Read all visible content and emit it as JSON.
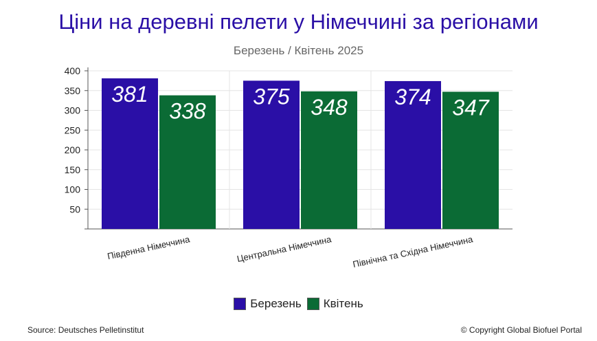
{
  "header": {
    "title": "Ціни на деревні пелети у Німеччині за регіонами",
    "subtitle": "Березень / Квітень 2025"
  },
  "footer": {
    "source": "Source: Deutsches Pelletinstitut",
    "copyright": "© Copyright Global Biofuel Portal"
  },
  "chart_data": {
    "type": "bar",
    "title": "Ціни на деревні пелети у Німеччині за регіонами",
    "subtitle": "Березень / Квітень 2025",
    "xlabel": "",
    "ylabel": "",
    "categories": [
      "Південна Німеччина",
      "Центральна Німеччина",
      "Північна та Східна Німеччина"
    ],
    "series": [
      {
        "name": "Березень",
        "values": [
          381,
          375,
          374
        ],
        "color": "#2a0fa6"
      },
      {
        "name": "Квітень",
        "values": [
          338,
          348,
          347
        ],
        "color": "#0b6b35"
      }
    ],
    "ylim": [
      0,
      400
    ],
    "yticks": [
      50,
      100,
      150,
      200,
      250,
      300,
      350,
      400
    ],
    "grid": true,
    "legend_position": "bottom",
    "data_labels": true
  }
}
